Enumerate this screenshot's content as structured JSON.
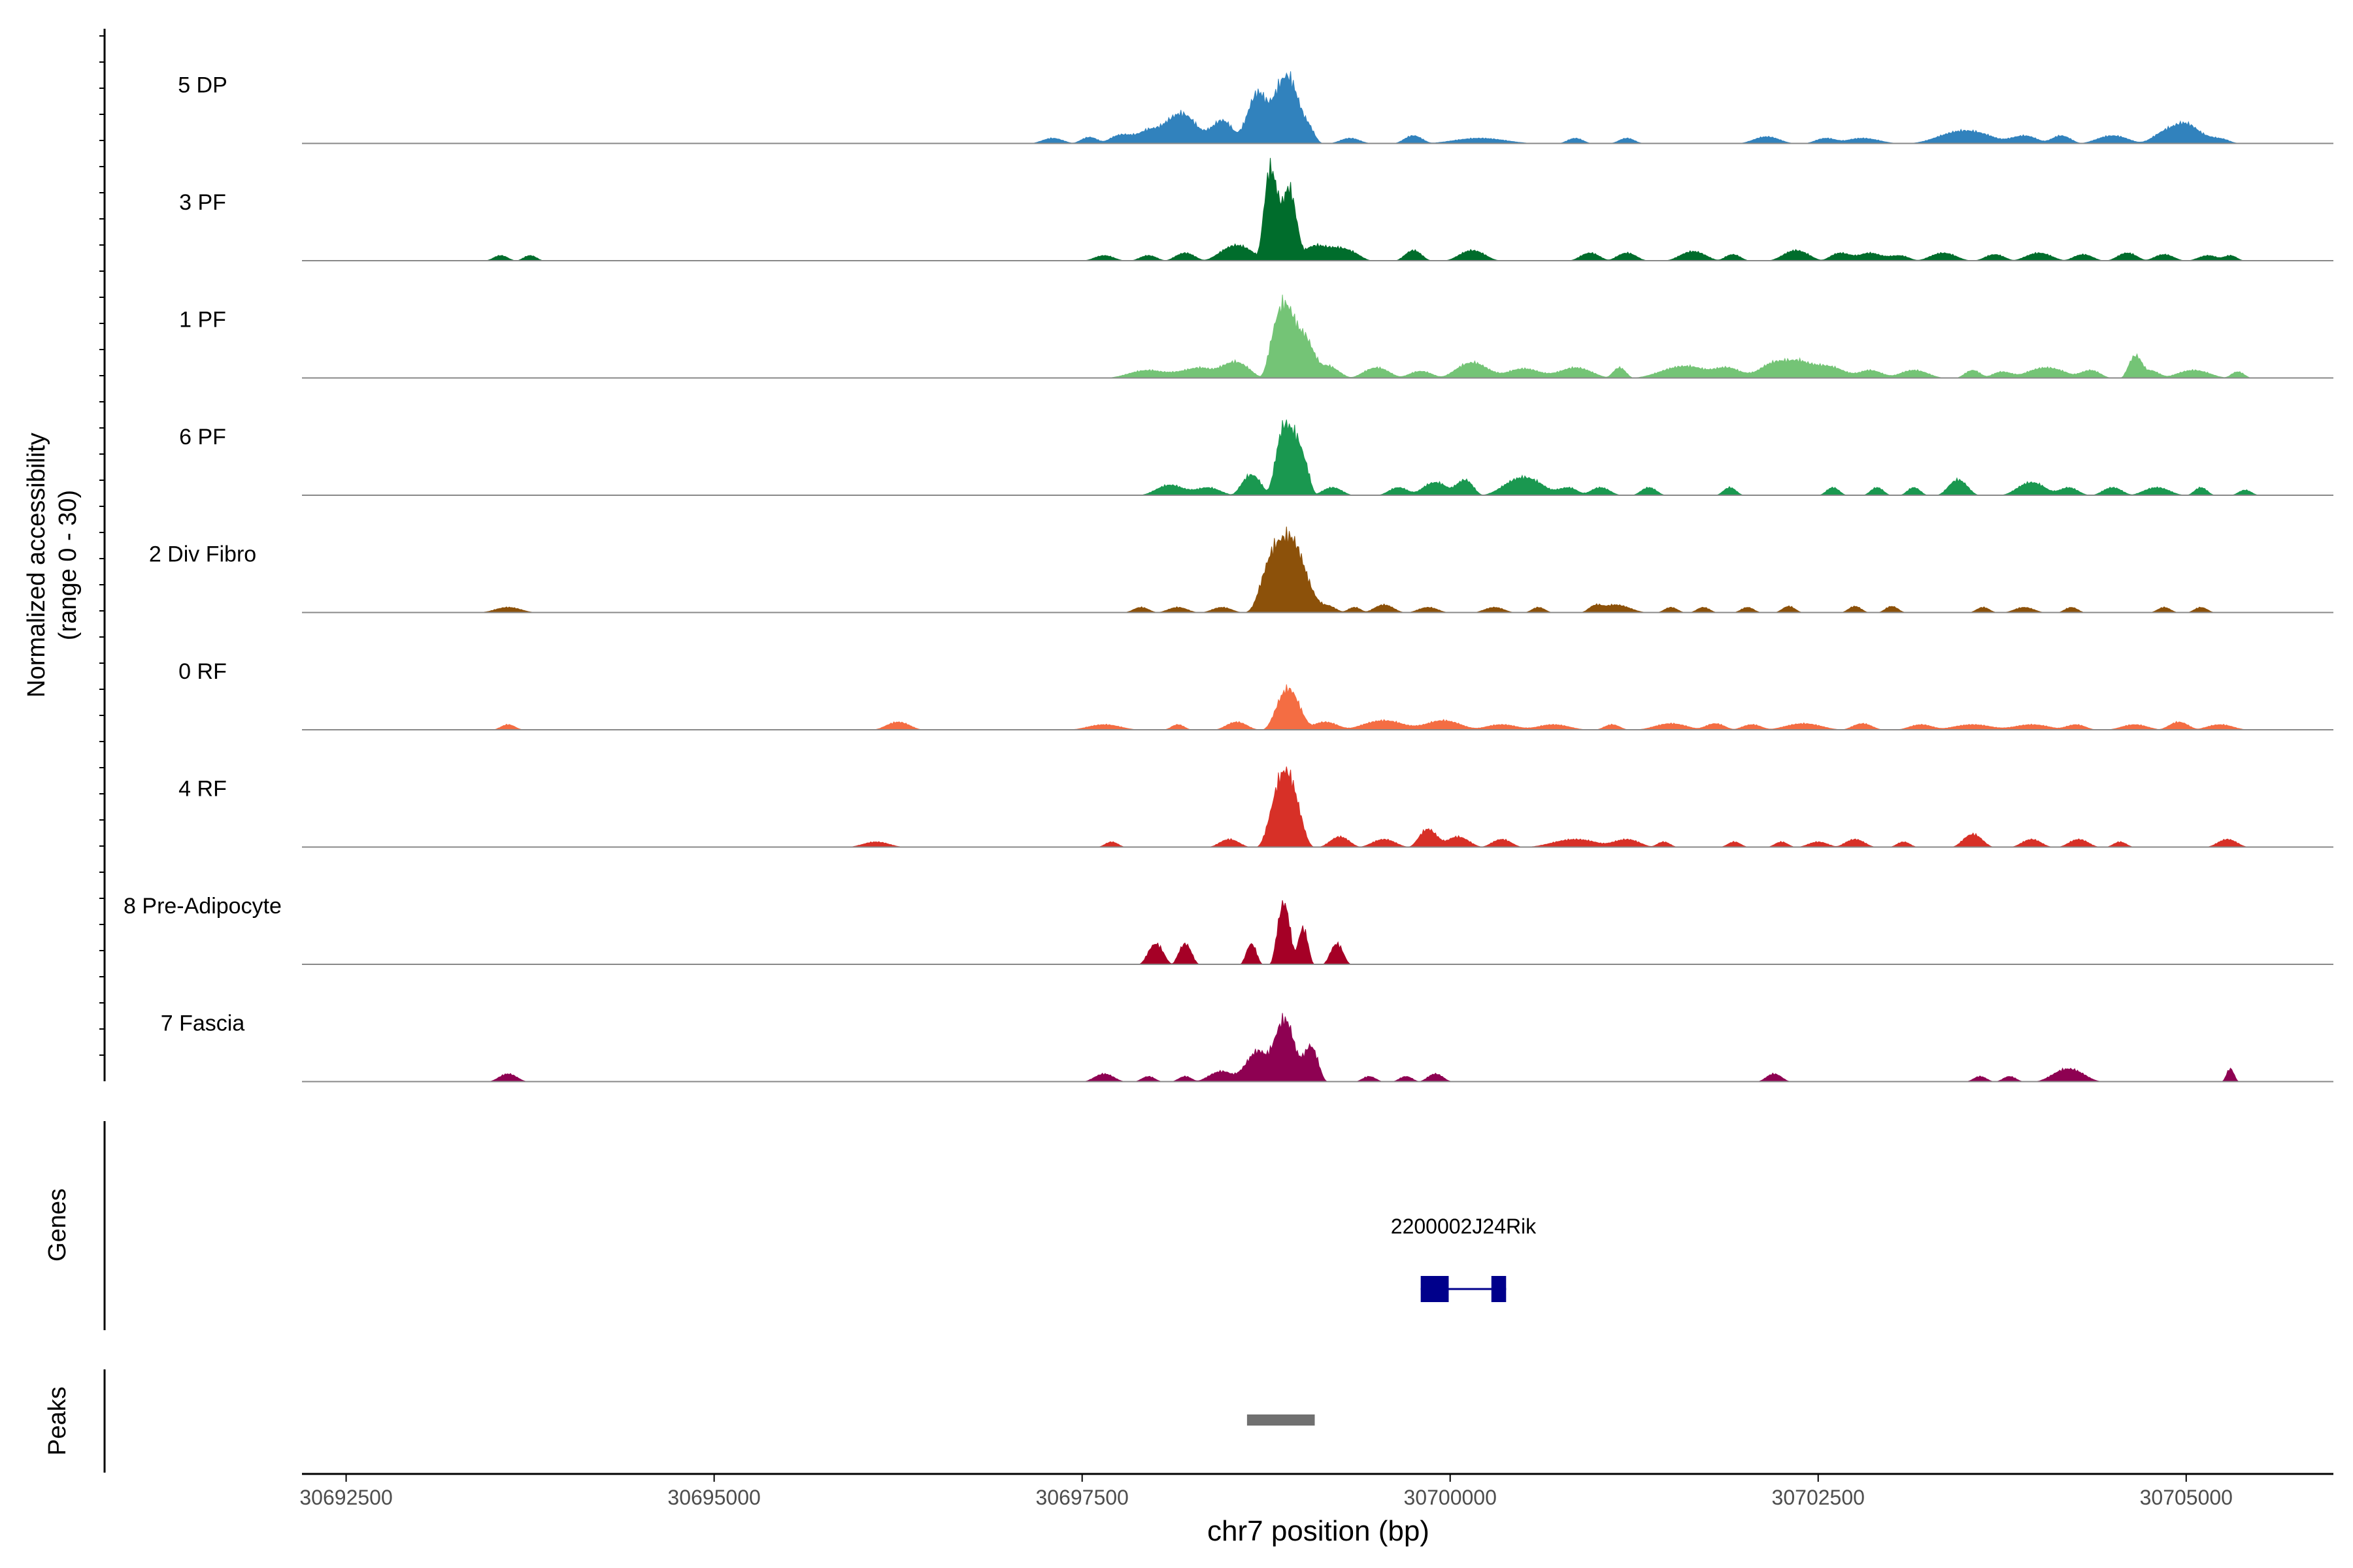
{
  "figure": {
    "coverage_axis_label": "Normalized accessibility",
    "coverage_axis_range": "(range 0 - 30)",
    "genes_label": "Genes",
    "peaks_label": "Peaks",
    "xlabel": "chr7 position (bp)"
  },
  "chart_data": {
    "type": "area",
    "chromosome": "chr7",
    "xlim": [
      30692200,
      30706000
    ],
    "xticks": [
      30692500,
      30695000,
      30697500,
      30700000,
      30702500,
      30705000
    ],
    "tick_labels": [
      "30692500",
      "30695000",
      "30697500",
      "30700000",
      "30702500",
      "30705000"
    ],
    "y_range": [
      0,
      30
    ],
    "tracks": [
      {
        "name": "5 DP",
        "color": "#3182bd",
        "peaks": [
          [
            30697300,
            160,
            1
          ],
          [
            30697550,
            130,
            1.2
          ],
          [
            30697750,
            150,
            1.5
          ],
          [
            30698000,
            300,
            3
          ],
          [
            30698200,
            220,
            5
          ],
          [
            30698450,
            180,
            4.5
          ],
          [
            30698700,
            180,
            10
          ],
          [
            30698880,
            150,
            13
          ],
          [
            30699000,
            140,
            5
          ],
          [
            30699320,
            150,
            1
          ],
          [
            30699750,
            140,
            1.5
          ],
          [
            30700200,
            400,
            1
          ],
          [
            30700850,
            120,
            1
          ],
          [
            30701200,
            120,
            1
          ],
          [
            30702150,
            200,
            1.3
          ],
          [
            30702550,
            150,
            1
          ],
          [
            30702800,
            260,
            1
          ],
          [
            30703500,
            400,
            2.5
          ],
          [
            30703900,
            200,
            1.5
          ],
          [
            30704150,
            150,
            1.5
          ],
          [
            30704500,
            240,
            1.5
          ],
          [
            30704800,
            150,
            1
          ],
          [
            30704980,
            260,
            4
          ],
          [
            30705220,
            150,
            1
          ]
        ]
      },
      {
        "name": "3 PF",
        "color": "#006d2c",
        "peaks": [
          [
            30693550,
            110,
            1
          ],
          [
            30693750,
            100,
            1
          ],
          [
            30697650,
            150,
            1
          ],
          [
            30697950,
            130,
            1
          ],
          [
            30698200,
            150,
            1.5
          ],
          [
            30698550,
            250,
            3
          ],
          [
            30698780,
            100,
            18
          ],
          [
            30698900,
            120,
            14
          ],
          [
            30699100,
            250,
            3
          ],
          [
            30699300,
            180,
            2
          ],
          [
            30699750,
            130,
            2
          ],
          [
            30700150,
            200,
            2
          ],
          [
            30700950,
            150,
            1.5
          ],
          [
            30701200,
            150,
            1.5
          ],
          [
            30701650,
            200,
            1.8
          ],
          [
            30701920,
            120,
            1.2
          ],
          [
            30702350,
            200,
            2
          ],
          [
            30702650,
            150,
            1.5
          ],
          [
            30702850,
            200,
            1.5
          ],
          [
            30703050,
            150,
            1
          ],
          [
            30703350,
            200,
            1.5
          ],
          [
            30703700,
            150,
            1.2
          ],
          [
            30704000,
            200,
            1.5
          ],
          [
            30704300,
            150,
            1.2
          ],
          [
            30704600,
            150,
            1.5
          ],
          [
            30704850,
            150,
            1.2
          ],
          [
            30705150,
            150,
            1
          ],
          [
            30705300,
            100,
            1
          ]
        ]
      },
      {
        "name": "1 PF",
        "color": "#74c476",
        "peaks": [
          [
            30697950,
            300,
            1.5
          ],
          [
            30698300,
            300,
            2
          ],
          [
            30698550,
            200,
            3
          ],
          [
            30698850,
            150,
            13
          ],
          [
            30698980,
            170,
            9
          ],
          [
            30699150,
            200,
            2.5
          ],
          [
            30699500,
            200,
            2
          ],
          [
            30699800,
            180,
            1.3
          ],
          [
            30700150,
            250,
            3
          ],
          [
            30700500,
            280,
            1.8
          ],
          [
            30700850,
            260,
            2
          ],
          [
            30701150,
            100,
            2
          ],
          [
            30701600,
            380,
            2.3
          ],
          [
            30701900,
            200,
            1.8
          ],
          [
            30702150,
            200,
            1.8
          ],
          [
            30702350,
            300,
            3.5
          ],
          [
            30702600,
            200,
            2
          ],
          [
            30702850,
            200,
            1.5
          ],
          [
            30703150,
            220,
            1.5
          ],
          [
            30703550,
            120,
            1.5
          ],
          [
            30703750,
            150,
            1.2
          ],
          [
            30704050,
            300,
            2
          ],
          [
            30704350,
            150,
            1.5
          ],
          [
            30704650,
            100,
            4
          ],
          [
            30704750,
            150,
            1.5
          ],
          [
            30705050,
            250,
            1.5
          ],
          [
            30705350,
            100,
            1.2
          ]
        ]
      },
      {
        "name": "6 PF",
        "color": "#1a9850",
        "peaks": [
          [
            30698100,
            220,
            2
          ],
          [
            30698350,
            200,
            1.5
          ],
          [
            30698650,
            150,
            4
          ],
          [
            30698880,
            140,
            14
          ],
          [
            30698990,
            110,
            8
          ],
          [
            30699200,
            150,
            1.5
          ],
          [
            30699650,
            150,
            1.5
          ],
          [
            30699900,
            200,
            2.5
          ],
          [
            30700100,
            130,
            3
          ],
          [
            30700500,
            300,
            3.5
          ],
          [
            30700800,
            150,
            1.5
          ],
          [
            30701020,
            150,
            1.5
          ],
          [
            30701350,
            120,
            1.5
          ],
          [
            30701900,
            100,
            1.5
          ],
          [
            30702600,
            100,
            1.5
          ],
          [
            30702900,
            100,
            1.5
          ],
          [
            30703150,
            100,
            1.5
          ],
          [
            30703450,
            150,
            3
          ],
          [
            30703950,
            220,
            2.5
          ],
          [
            30704200,
            150,
            1.5
          ],
          [
            30704500,
            150,
            1.5
          ],
          [
            30704800,
            200,
            1.5
          ],
          [
            30705100,
            100,
            1.5
          ],
          [
            30705400,
            100,
            1
          ]
        ]
      },
      {
        "name": "2 Div Fibro",
        "color": "#8c510a",
        "peaks": [
          [
            30693600,
            200,
            1
          ],
          [
            30697900,
            120,
            1
          ],
          [
            30698150,
            150,
            1
          ],
          [
            30698450,
            150,
            1
          ],
          [
            30698750,
            150,
            4
          ],
          [
            30698900,
            260,
            15
          ],
          [
            30699150,
            150,
            1.5
          ],
          [
            30699350,
            100,
            1
          ],
          [
            30699550,
            150,
            1.5
          ],
          [
            30699850,
            150,
            1
          ],
          [
            30700300,
            150,
            1
          ],
          [
            30700600,
            100,
            1
          ],
          [
            30700980,
            100,
            1
          ],
          [
            30701120,
            230,
            1.5
          ],
          [
            30701500,
            100,
            1
          ],
          [
            30701720,
            100,
            1
          ],
          [
            30702020,
            100,
            1
          ],
          [
            30702300,
            100,
            1.2
          ],
          [
            30702750,
            100,
            1.2
          ],
          [
            30703000,
            100,
            1.2
          ],
          [
            30703620,
            100,
            1
          ],
          [
            30703900,
            150,
            1
          ],
          [
            30704220,
            100,
            1
          ],
          [
            30704850,
            100,
            1
          ],
          [
            30705100,
            100,
            1
          ]
        ]
      },
      {
        "name": "0 RF",
        "color": "#f46d43",
        "peaks": [
          [
            30693600,
            110,
            1
          ],
          [
            30696250,
            180,
            1.5
          ],
          [
            30697650,
            250,
            1
          ],
          [
            30698150,
            100,
            1
          ],
          [
            30698550,
            160,
            1.5
          ],
          [
            30698900,
            180,
            8
          ],
          [
            30699150,
            200,
            1.5
          ],
          [
            30699550,
            320,
            1.8
          ],
          [
            30699950,
            280,
            1.8
          ],
          [
            30700350,
            250,
            1
          ],
          [
            30700700,
            250,
            1
          ],
          [
            30701100,
            120,
            1
          ],
          [
            30701500,
            250,
            1.2
          ],
          [
            30701800,
            150,
            1.2
          ],
          [
            30702050,
            150,
            1
          ],
          [
            30702400,
            280,
            1.2
          ],
          [
            30702800,
            150,
            1.2
          ],
          [
            30703200,
            180,
            1
          ],
          [
            30703550,
            300,
            1
          ],
          [
            30703950,
            280,
            1
          ],
          [
            30704250,
            150,
            1
          ],
          [
            30704650,
            200,
            1
          ],
          [
            30704950,
            150,
            1.5
          ],
          [
            30705230,
            200,
            1
          ]
        ]
      },
      {
        "name": "4 RF",
        "color": "#d73027",
        "peaks": [
          [
            30696100,
            200,
            1
          ],
          [
            30697700,
            100,
            1
          ],
          [
            30698500,
            150,
            1.5
          ],
          [
            30698880,
            200,
            15
          ],
          [
            30699250,
            150,
            2
          ],
          [
            30699550,
            180,
            1.5
          ],
          [
            30699850,
            140,
            3.5
          ],
          [
            30700050,
            180,
            2
          ],
          [
            30700350,
            150,
            1.5
          ],
          [
            30700850,
            350,
            1.5
          ],
          [
            30701200,
            200,
            1.5
          ],
          [
            30701450,
            100,
            1
          ],
          [
            30701930,
            100,
            1
          ],
          [
            30702250,
            100,
            1
          ],
          [
            30702500,
            150,
            1
          ],
          [
            30702750,
            150,
            1.5
          ],
          [
            30703080,
            100,
            1
          ],
          [
            30703550,
            150,
            2.5
          ],
          [
            30703950,
            150,
            1.5
          ],
          [
            30704270,
            150,
            1.5
          ],
          [
            30704550,
            100,
            1
          ],
          [
            30705280,
            150,
            1.5
          ]
        ]
      },
      {
        "name": "8 Pre-Adipocyte",
        "color": "#a50026",
        "peaks": [
          [
            30698000,
            120,
            4
          ],
          [
            30698200,
            100,
            4
          ],
          [
            30698650,
            80,
            4
          ],
          [
            30698870,
            100,
            12
          ],
          [
            30699000,
            80,
            7
          ],
          [
            30699230,
            100,
            4
          ]
        ]
      },
      {
        "name": "7 Fascia",
        "color": "#8e0152",
        "peaks": [
          [
            30693600,
            140,
            1.5
          ],
          [
            30697650,
            150,
            1.5
          ],
          [
            30697950,
            100,
            1
          ],
          [
            30698200,
            100,
            1
          ],
          [
            30698450,
            200,
            2
          ],
          [
            30698700,
            200,
            6
          ],
          [
            30698880,
            150,
            12
          ],
          [
            30699050,
            120,
            7
          ],
          [
            30699450,
            100,
            1
          ],
          [
            30699700,
            100,
            1
          ],
          [
            30699900,
            120,
            1.5
          ],
          [
            30702200,
            120,
            1.5
          ],
          [
            30703600,
            100,
            1
          ],
          [
            30703800,
            100,
            1
          ],
          [
            30704200,
            240,
            2.5
          ],
          [
            30705300,
            60,
            2.5
          ]
        ]
      }
    ],
    "genes": [
      {
        "name": "2200002J24Rik",
        "start": 30699800,
        "end": 30700380,
        "exons": [
          [
            30699800,
            30699990
          ],
          [
            30700280,
            30700380
          ]
        ],
        "color": "#00008b"
      }
    ],
    "peaks": [
      {
        "start": 30698620,
        "end": 30699080,
        "color": "#707070"
      }
    ]
  }
}
